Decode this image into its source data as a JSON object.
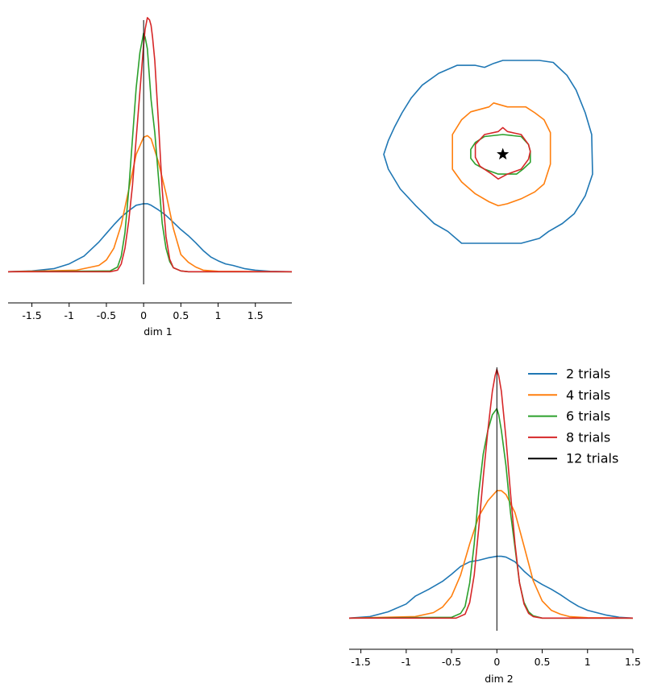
{
  "chart_data": [
    {
      "type": "line",
      "panel": "top-left",
      "xlabel": "dim 1",
      "ylabel": "",
      "xlim": [
        -1.82,
        1.99
      ],
      "ylim": [
        -0.1,
        3.3
      ],
      "xticks": [
        -1.5,
        -1,
        -0.5,
        0,
        0.5,
        1,
        1.5
      ],
      "xtick_labels": [
        "-1.5",
        "-1",
        "-0.5",
        "0",
        "0.5",
        "1",
        "1.5"
      ],
      "grid": false,
      "true_value": 0,
      "series": [
        {
          "name": "2 trials",
          "color": "#1f77b4",
          "x": [
            -1.82,
            -1.5,
            -1.2,
            -1.0,
            -0.8,
            -0.6,
            -0.5,
            -0.4,
            -0.3,
            -0.2,
            -0.1,
            0,
            0.05,
            0.1,
            0.2,
            0.3,
            0.4,
            0.5,
            0.6,
            0.7,
            0.8,
            0.9,
            1.0,
            1.1,
            1.2,
            1.35,
            1.5,
            1.7,
            1.99
          ],
          "y": [
            0,
            0.01,
            0.04,
            0.1,
            0.2,
            0.38,
            0.49,
            0.6,
            0.7,
            0.78,
            0.85,
            0.87,
            0.87,
            0.85,
            0.79,
            0.72,
            0.63,
            0.54,
            0.46,
            0.37,
            0.27,
            0.19,
            0.14,
            0.1,
            0.08,
            0.04,
            0.02,
            0.005,
            0
          ]
        },
        {
          "name": "4 trials",
          "color": "#ff7f0e",
          "x": [
            -1.82,
            -0.9,
            -0.6,
            -0.5,
            -0.4,
            -0.3,
            -0.2,
            -0.1,
            0,
            0.05,
            0.1,
            0.2,
            0.3,
            0.4,
            0.5,
            0.6,
            0.7,
            0.8,
            1.0,
            1.99
          ],
          "y": [
            0,
            0.02,
            0.08,
            0.15,
            0.3,
            0.6,
            1.05,
            1.5,
            1.72,
            1.74,
            1.7,
            1.4,
            1.0,
            0.55,
            0.22,
            0.12,
            0.06,
            0.02,
            0.005,
            0
          ]
        },
        {
          "name": "6 trials",
          "color": "#2ca02c",
          "x": [
            -1.82,
            -0.45,
            -0.35,
            -0.3,
            -0.25,
            -0.2,
            -0.15,
            -0.1,
            -0.05,
            0,
            0.02,
            0.05,
            0.1,
            0.15,
            0.2,
            0.25,
            0.3,
            0.35,
            0.4,
            0.5,
            0.6,
            1.99
          ],
          "y": [
            0,
            0.01,
            0.06,
            0.2,
            0.5,
            1.05,
            1.7,
            2.35,
            2.8,
            3.05,
            3.0,
            2.85,
            2.2,
            1.78,
            1.2,
            0.62,
            0.3,
            0.13,
            0.05,
            0.01,
            0,
            0
          ]
        },
        {
          "name": "8 trials",
          "color": "#d62728",
          "x": [
            -1.82,
            -0.45,
            -0.35,
            -0.3,
            -0.25,
            -0.2,
            -0.15,
            -0.1,
            -0.05,
            0,
            0.02,
            0.05,
            0.08,
            0.1,
            0.12,
            0.15,
            0.2,
            0.25,
            0.3,
            0.35,
            0.4,
            0.5,
            0.6,
            1.99
          ],
          "y": [
            0,
            0,
            0.02,
            0.1,
            0.3,
            0.65,
            1.1,
            1.7,
            2.3,
            2.9,
            3.1,
            3.25,
            3.22,
            3.15,
            3.0,
            2.7,
            1.9,
            1.05,
            0.45,
            0.16,
            0.05,
            0.01,
            0,
            0
          ]
        }
      ]
    },
    {
      "type": "contour",
      "panel": "top-right",
      "xlabel": "",
      "ylabel": "",
      "xlim": [
        -1.7,
        1.5
      ],
      "ylim": [
        -1.3,
        1.5
      ],
      "marker": {
        "symbol": "star",
        "x": 0,
        "y": 0,
        "color": "#000000"
      },
      "series": [
        {
          "name": "2 trials",
          "color": "#1f77b4",
          "points": [
            [
              -1.3,
              0
            ],
            [
              -1.25,
              0.14
            ],
            [
              -1.18,
              0.28
            ],
            [
              -1.1,
              0.42
            ],
            [
              -1.0,
              0.57
            ],
            [
              -0.88,
              0.7
            ],
            [
              -0.7,
              0.82
            ],
            [
              -0.5,
              0.9
            ],
            [
              -0.3,
              0.9
            ],
            [
              -0.2,
              0.88
            ],
            [
              -0.1,
              0.92
            ],
            [
              0,
              0.95
            ],
            [
              0.15,
              0.95
            ],
            [
              0.4,
              0.95
            ],
            [
              0.55,
              0.93
            ],
            [
              0.7,
              0.8
            ],
            [
              0.8,
              0.65
            ],
            [
              0.9,
              0.42
            ],
            [
              0.97,
              0.2
            ],
            [
              0.98,
              -0.2
            ],
            [
              0.9,
              -0.42
            ],
            [
              0.78,
              -0.6
            ],
            [
              0.65,
              -0.7
            ],
            [
              0.5,
              -0.78
            ],
            [
              0.4,
              -0.85
            ],
            [
              0.2,
              -0.9
            ],
            [
              0,
              -0.9
            ],
            [
              -0.15,
              -0.9
            ],
            [
              -0.45,
              -0.9
            ],
            [
              -0.6,
              -0.78
            ],
            [
              -0.75,
              -0.7
            ],
            [
              -0.95,
              -0.52
            ],
            [
              -1.12,
              -0.35
            ],
            [
              -1.25,
              -0.15
            ]
          ]
        },
        {
          "name": "4 trials",
          "color": "#ff7f0e",
          "points": [
            [
              -0.55,
              0.2
            ],
            [
              -0.45,
              0.35
            ],
            [
              -0.35,
              0.43
            ],
            [
              -0.15,
              0.48
            ],
            [
              -0.1,
              0.52
            ],
            [
              0.05,
              0.48
            ],
            [
              0.25,
              0.48
            ],
            [
              0.35,
              0.42
            ],
            [
              0.45,
              0.35
            ],
            [
              0.52,
              0.22
            ],
            [
              0.52,
              -0.1
            ],
            [
              0.45,
              -0.3
            ],
            [
              0.35,
              -0.38
            ],
            [
              0.2,
              -0.45
            ],
            [
              0.05,
              -0.5
            ],
            [
              -0.05,
              -0.52
            ],
            [
              -0.15,
              -0.48
            ],
            [
              -0.3,
              -0.4
            ],
            [
              -0.45,
              -0.28
            ],
            [
              -0.55,
              -0.15
            ]
          ]
        },
        {
          "name": "6 trials",
          "color": "#2ca02c",
          "points": [
            [
              -0.35,
              0.05
            ],
            [
              -0.3,
              0.12
            ],
            [
              -0.2,
              0.18
            ],
            [
              0,
              0.2
            ],
            [
              0.2,
              0.18
            ],
            [
              0.28,
              0.1
            ],
            [
              0.3,
              0.03
            ],
            [
              0.3,
              -0.08
            ],
            [
              0.22,
              -0.15
            ],
            [
              0.15,
              -0.2
            ],
            [
              -0.05,
              -0.2
            ],
            [
              -0.2,
              -0.15
            ],
            [
              -0.3,
              -0.1
            ],
            [
              -0.35,
              -0.04
            ]
          ]
        },
        {
          "name": "8 trials",
          "color": "#d62728",
          "points": [
            [
              -0.3,
              0.1
            ],
            [
              -0.2,
              0.2
            ],
            [
              -0.05,
              0.23
            ],
            [
              0,
              0.27
            ],
            [
              0.05,
              0.23
            ],
            [
              0.2,
              0.2
            ],
            [
              0.28,
              0.1
            ],
            [
              0.3,
              0.03
            ],
            [
              0.28,
              -0.05
            ],
            [
              0.2,
              -0.15
            ],
            [
              0.05,
              -0.2
            ],
            [
              -0.05,
              -0.25
            ],
            [
              -0.12,
              -0.2
            ],
            [
              -0.25,
              -0.12
            ],
            [
              -0.3,
              -0.03
            ]
          ]
        }
      ]
    },
    {
      "type": "line",
      "panel": "bottom-right",
      "xlabel": "dim 2",
      "ylabel": "",
      "xlim": [
        -1.63,
        1.5
      ],
      "ylim": [
        -0.1,
        3.3
      ],
      "xticks": [
        -1.5,
        -1,
        -0.5,
        0,
        0.5,
        1,
        1.5
      ],
      "xtick_labels": [
        "-1.5",
        "-1",
        "-0.5",
        "0",
        "0.5",
        "1",
        "1.5"
      ],
      "grid": false,
      "true_value": 0,
      "legend": {
        "placement": "top-right"
      },
      "series": [
        {
          "name": "2 trials",
          "color": "#1f77b4",
          "x": [
            -1.63,
            -1.4,
            -1.2,
            -1.0,
            -0.9,
            -0.75,
            -0.6,
            -0.5,
            -0.4,
            -0.3,
            -0.2,
            -0.1,
            0,
            0.05,
            0.1,
            0.2,
            0.3,
            0.4,
            0.5,
            0.6,
            0.7,
            0.8,
            0.9,
            1.0,
            1.1,
            1.2,
            1.35,
            1.5
          ],
          "y": [
            0,
            0.02,
            0.08,
            0.18,
            0.28,
            0.37,
            0.47,
            0.56,
            0.66,
            0.72,
            0.74,
            0.77,
            0.79,
            0.79,
            0.78,
            0.72,
            0.6,
            0.5,
            0.43,
            0.37,
            0.3,
            0.22,
            0.15,
            0.1,
            0.07,
            0.04,
            0.01,
            0
          ]
        },
        {
          "name": "4 trials",
          "color": "#ff7f0e",
          "x": [
            -1.63,
            -0.9,
            -0.7,
            -0.6,
            -0.5,
            -0.4,
            -0.3,
            -0.2,
            -0.1,
            0,
            0.05,
            0.1,
            0.2,
            0.3,
            0.4,
            0.5,
            0.6,
            0.7,
            0.8,
            1.0,
            1.5
          ],
          "y": [
            0,
            0.02,
            0.07,
            0.14,
            0.28,
            0.55,
            0.95,
            1.3,
            1.5,
            1.63,
            1.63,
            1.58,
            1.35,
            0.92,
            0.48,
            0.22,
            0.1,
            0.05,
            0.02,
            0.005,
            0
          ]
        },
        {
          "name": "6 trials",
          "color": "#2ca02c",
          "x": [
            -1.63,
            -0.5,
            -0.4,
            -0.35,
            -0.3,
            -0.25,
            -0.2,
            -0.15,
            -0.1,
            -0.05,
            0,
            0.02,
            0.05,
            0.1,
            0.15,
            0.2,
            0.25,
            0.3,
            0.35,
            0.4,
            0.5,
            1.5
          ],
          "y": [
            0,
            0.01,
            0.06,
            0.15,
            0.45,
            0.95,
            1.6,
            2.1,
            2.4,
            2.6,
            2.68,
            2.6,
            2.4,
            1.95,
            1.35,
            0.9,
            0.45,
            0.2,
            0.08,
            0.03,
            0,
            0
          ]
        },
        {
          "name": "8 trials",
          "color": "#d62728",
          "x": [
            -1.63,
            -0.45,
            -0.35,
            -0.3,
            -0.25,
            -0.2,
            -0.15,
            -0.1,
            -0.05,
            -0.02,
            0,
            0.02,
            0.05,
            0.1,
            0.15,
            0.2,
            0.25,
            0.3,
            0.35,
            0.4,
            0.5,
            1.5
          ],
          "y": [
            0,
            0,
            0.05,
            0.2,
            0.55,
            1.15,
            1.8,
            2.4,
            2.9,
            3.1,
            3.18,
            3.1,
            2.9,
            2.3,
            1.6,
            0.95,
            0.45,
            0.18,
            0.06,
            0.02,
            0,
            0
          ]
        },
        {
          "name": "12 trials",
          "color": "#000000",
          "vertical_at": 0
        }
      ]
    }
  ]
}
